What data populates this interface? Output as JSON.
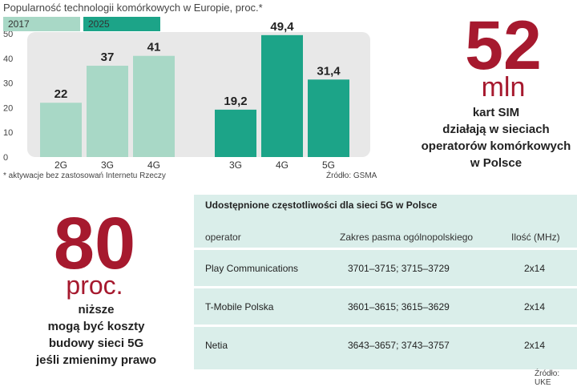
{
  "chart_data": {
    "type": "bar",
    "title": "Popularność technologii komórkowych w Europie, proc.*",
    "ylim": [
      0,
      50
    ],
    "yticks": [
      0,
      10,
      20,
      30,
      40,
      50
    ],
    "grid": false,
    "legend_placement": "top-left",
    "series": [
      {
        "name": "2017",
        "color": "#a8d8c6",
        "categories": [
          "2G",
          "3G",
          "4G"
        ],
        "values": [
          22,
          37,
          41
        ],
        "labels": [
          "22",
          "37",
          "41"
        ]
      },
      {
        "name": "2025",
        "color": "#1ca488",
        "categories": [
          "3G",
          "4G",
          "5G"
        ],
        "values": [
          19.2,
          49.4,
          31.4
        ],
        "labels": [
          "19,2",
          "49,4",
          "31,4"
        ]
      }
    ],
    "footnote": "* aktywacje bez zastosowań Internetu Rzeczy",
    "source": "Źródło: GSMA"
  },
  "colors": {
    "accent_red": "#a6192e",
    "plot_bg": "#e8e8e8",
    "table_bg": "#daeeea"
  },
  "stat_sim": {
    "number": "52",
    "unit": "mln",
    "description_lines": [
      "kart SIM",
      "działają w sieciach",
      "operatorów komórkowych",
      "w Polsce"
    ]
  },
  "stat_cost": {
    "number": "80",
    "unit": "proc.",
    "description_lines": [
      "niższe",
      "mogą być koszty",
      "budowy sieci 5G",
      "jeśli zmienimy prawo"
    ]
  },
  "table": {
    "title": "Udostępnione częstotliwości dla sieci 5G w Polsce",
    "headers": [
      "operator",
      "Zakres pasma ogólnopolskiego",
      "Ilość (MHz)"
    ],
    "rows": [
      [
        "Play Communications",
        "3701–3715; 3715–3729",
        "2x14"
      ],
      [
        "T-Mobile Polska",
        "3601–3615; 3615–3629",
        "2x14"
      ],
      [
        "Netia",
        "3643–3657; 3743–3757",
        "2x14"
      ]
    ],
    "source": "Źródło: UKE"
  }
}
